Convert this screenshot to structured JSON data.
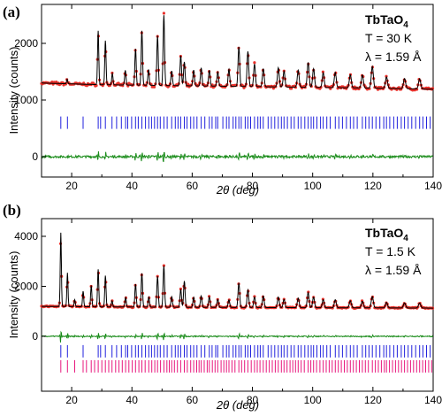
{
  "chart_data": [
    {
      "panel": "(a)",
      "type": "line",
      "xlabel": "2θ (deg)",
      "ylabel": "Intensity (counts)",
      "xlim": [
        10,
        140
      ],
      "xticks": [
        20,
        40,
        60,
        80,
        100,
        120,
        140
      ],
      "yticks": [
        0,
        1000,
        2000
      ],
      "grid": false,
      "annotation": {
        "compound": "TbTaO",
        "subscript": "4",
        "temperature": "T = 30 K",
        "wavelength": "λ = 1.59 Å"
      },
      "series": [
        {
          "role": "observed",
          "color": "#e8302a",
          "background": [
            [
              10,
              1300
            ],
            [
              30,
              1270
            ],
            [
              60,
              1250
            ],
            [
              90,
              1230
            ],
            [
              120,
              1210
            ],
            [
              140,
              1190
            ]
          ],
          "peaks": [
            [
              18.5,
              80
            ],
            [
              28.8,
              950
            ],
            [
              31.2,
              780
            ],
            [
              33.5,
              200
            ],
            [
              37.8,
              260
            ],
            [
              41.2,
              640
            ],
            [
              43.3,
              960
            ],
            [
              45.5,
              280
            ],
            [
              48.5,
              880
            ],
            [
              50.6,
              1240
            ],
            [
              53.2,
              260
            ],
            [
              56.2,
              530
            ],
            [
              57.4,
              420
            ],
            [
              60.5,
              280
            ],
            [
              63.0,
              320
            ],
            [
              65.7,
              280
            ],
            [
              68.5,
              250
            ],
            [
              72.2,
              300
            ],
            [
              75.5,
              700
            ],
            [
              78.5,
              620
            ],
            [
              80.7,
              400
            ],
            [
              83.6,
              320
            ],
            [
              88.6,
              340
            ],
            [
              90.5,
              280
            ],
            [
              95.2,
              300
            ],
            [
              98.5,
              440
            ],
            [
              100.3,
              330
            ],
            [
              103.5,
              260
            ],
            [
              107.5,
              270
            ],
            [
              112.5,
              230
            ],
            [
              116.5,
              230
            ],
            [
              119.8,
              380
            ],
            [
              124.5,
              200
            ],
            [
              130.5,
              180
            ],
            [
              135.5,
              180
            ]
          ]
        },
        {
          "role": "calculated",
          "color": "#000000"
        },
        {
          "role": "Bragg positions",
          "color": "#2222dd",
          "y": 600,
          "positions": [
            16.4,
            18.6,
            23.8,
            28.8,
            29.6,
            31.2,
            33.4,
            34.9,
            36.5,
            37.9,
            38.6,
            39.9,
            41.2,
            42.1,
            43.3,
            44.5,
            45.6,
            46.5,
            47.5,
            48.5,
            49.4,
            50.6,
            51.7,
            53.2,
            54.4,
            55.3,
            56.2,
            57.4,
            58.3,
            59.5,
            60.5,
            61.6,
            63.0,
            64.2,
            65.7,
            66.6,
            67.8,
            68.5,
            70.2,
            71.4,
            72.2,
            73.6,
            74.5,
            75.5,
            76.3,
            77.6,
            78.5,
            79.4,
            80.7,
            81.8,
            82.6,
            83.6,
            85.2,
            86.3,
            87.4,
            88.6,
            89.6,
            90.5,
            91.6,
            92.8,
            93.9,
            95.2,
            96.2,
            97.4,
            98.5,
            99.5,
            100.3,
            101.4,
            102.6,
            103.5,
            104.7,
            105.8,
            107.5,
            108.7,
            109.9,
            111.2,
            112.5,
            113.6,
            114.8,
            116.5,
            117.6,
            118.7,
            119.8,
            121.0,
            122.3,
            123.6,
            124.5,
            125.6,
            126.9,
            128.1,
            129.4,
            130.5,
            131.7,
            132.9,
            134.2,
            135.5,
            136.6,
            137.8,
            139.0
          ]
        },
        {
          "role": "difference",
          "color": "#1a8c1a",
          "offset": 0
        }
      ]
    },
    {
      "panel": "(b)",
      "type": "line",
      "xlabel": "2θ (deg)",
      "ylabel": "Intensity (counts)",
      "xlim": [
        10,
        140
      ],
      "xticks": [
        20,
        40,
        60,
        80,
        100,
        120,
        140
      ],
      "yticks": [
        0,
        2000,
        4000
      ],
      "grid": false,
      "annotation": {
        "compound": "TbTaO",
        "subscript": "4",
        "temperature": "T = 1.5 K",
        "wavelength": "λ = 1.59 Å"
      },
      "series": [
        {
          "role": "observed",
          "color": "#e8302a",
          "background": [
            [
              10,
              1200
            ],
            [
              30,
              1180
            ],
            [
              60,
              1160
            ],
            [
              90,
              1150
            ],
            [
              120,
              1140
            ],
            [
              140,
              1130
            ]
          ],
          "peaks": [
            [
              16.4,
              2950
            ],
            [
              18.6,
              1350
            ],
            [
              21.0,
              280
            ],
            [
              23.8,
              620
            ],
            [
              26.5,
              850
            ],
            [
              28.8,
              1500
            ],
            [
              31.2,
              1250
            ],
            [
              33.4,
              240
            ],
            [
              37.9,
              380
            ],
            [
              41.2,
              920
            ],
            [
              43.3,
              1350
            ],
            [
              45.6,
              400
            ],
            [
              48.5,
              1240
            ],
            [
              50.6,
              1650
            ],
            [
              53.2,
              420
            ],
            [
              56.2,
              720
            ],
            [
              57.4,
              1050
            ],
            [
              60.5,
              400
            ],
            [
              63.0,
              460
            ],
            [
              65.7,
              420
            ],
            [
              68.5,
              320
            ],
            [
              72.2,
              300
            ],
            [
              75.5,
              980
            ],
            [
              78.5,
              700
            ],
            [
              80.7,
              420
            ],
            [
              83.6,
              460
            ],
            [
              88.6,
              420
            ],
            [
              90.5,
              330
            ],
            [
              95.2,
              380
            ],
            [
              98.5,
              600
            ],
            [
              100.3,
              420
            ],
            [
              103.5,
              320
            ],
            [
              107.5,
              320
            ],
            [
              112.5,
              280
            ],
            [
              116.5,
              260
            ],
            [
              119.8,
              450
            ],
            [
              124.5,
              220
            ],
            [
              130.5,
              200
            ],
            [
              135.5,
              200
            ]
          ]
        },
        {
          "role": "calculated",
          "color": "#000000"
        },
        {
          "role": "difference",
          "color": "#1a8c1a",
          "offset": 0
        },
        {
          "role": "Bragg positions (nuclear)",
          "color": "#2222dd",
          "y": -600,
          "positions": [
            16.4,
            18.6,
            23.8,
            28.8,
            29.6,
            31.2,
            33.4,
            34.9,
            36.5,
            37.9,
            38.6,
            39.9,
            41.2,
            42.1,
            43.3,
            44.5,
            45.6,
            46.5,
            47.5,
            48.5,
            49.4,
            50.6,
            51.7,
            53.2,
            54.4,
            55.3,
            56.2,
            57.4,
            58.3,
            59.5,
            60.5,
            61.6,
            63.0,
            64.2,
            65.7,
            66.6,
            67.8,
            68.5,
            70.2,
            71.4,
            72.2,
            73.6,
            74.5,
            75.5,
            76.3,
            77.6,
            78.5,
            79.4,
            80.7,
            81.8,
            82.6,
            83.6,
            85.2,
            86.3,
            87.4,
            88.6,
            89.6,
            90.5,
            91.6,
            92.8,
            93.9,
            95.2,
            96.2,
            97.4,
            98.5,
            99.5,
            100.3,
            101.4,
            102.6,
            103.5,
            104.7,
            105.8,
            107.5,
            108.7,
            109.9,
            111.2,
            112.5,
            113.6,
            114.8,
            116.5,
            117.6,
            118.7,
            119.8,
            121.0,
            122.3,
            123.6,
            124.5,
            125.6,
            126.9,
            128.1,
            129.4,
            130.5,
            131.7,
            132.9,
            134.2,
            135.5,
            136.6,
            137.8,
            139.0
          ]
        },
        {
          "role": "Bragg positions (magnetic)",
          "color": "#e8177d",
          "y": -1200,
          "positions": [
            16.4,
            18.6,
            21.0,
            23.8,
            24.9,
            26.5,
            27.6,
            28.8,
            30.0,
            31.2,
            32.3,
            33.4,
            34.6,
            35.7,
            36.8,
            37.9,
            39.0,
            40.1,
            41.2,
            42.3,
            43.3,
            44.4,
            45.6,
            46.6,
            47.6,
            48.5,
            49.5,
            50.6,
            51.6,
            52.4,
            53.2,
            54.1,
            55.1,
            56.2,
            57.4,
            58.4,
            59.5,
            60.5,
            61.5,
            62.3,
            63.0,
            64.0,
            65.0,
            65.7,
            66.7,
            67.6,
            68.5,
            69.6,
            70.5,
            71.4,
            72.2,
            73.2,
            74.2,
            75.5,
            76.4,
            77.4,
            78.5,
            79.6,
            80.7,
            81.6,
            82.5,
            83.6,
            84.6,
            85.6,
            86.6,
            87.6,
            88.6,
            89.6,
            90.5,
            91.5,
            92.5,
            93.4,
            94.3,
            95.2,
            96.2,
            97.2,
            98.5,
            99.4,
            100.3,
            101.3,
            102.4,
            103.5,
            104.5,
            105.5,
            106.5,
            107.5,
            108.5,
            109.5,
            110.5,
            111.5,
            112.5,
            113.5,
            114.5,
            115.5,
            116.5,
            117.5,
            118.5,
            119.8,
            120.8,
            121.8,
            122.8,
            123.8,
            124.5,
            125.5,
            126.5,
            127.5,
            128.5,
            129.5,
            130.5,
            131.5,
            132.5,
            133.5,
            134.5,
            135.5,
            136.5,
            137.5,
            138.5,
            139.5
          ]
        }
      ]
    }
  ]
}
